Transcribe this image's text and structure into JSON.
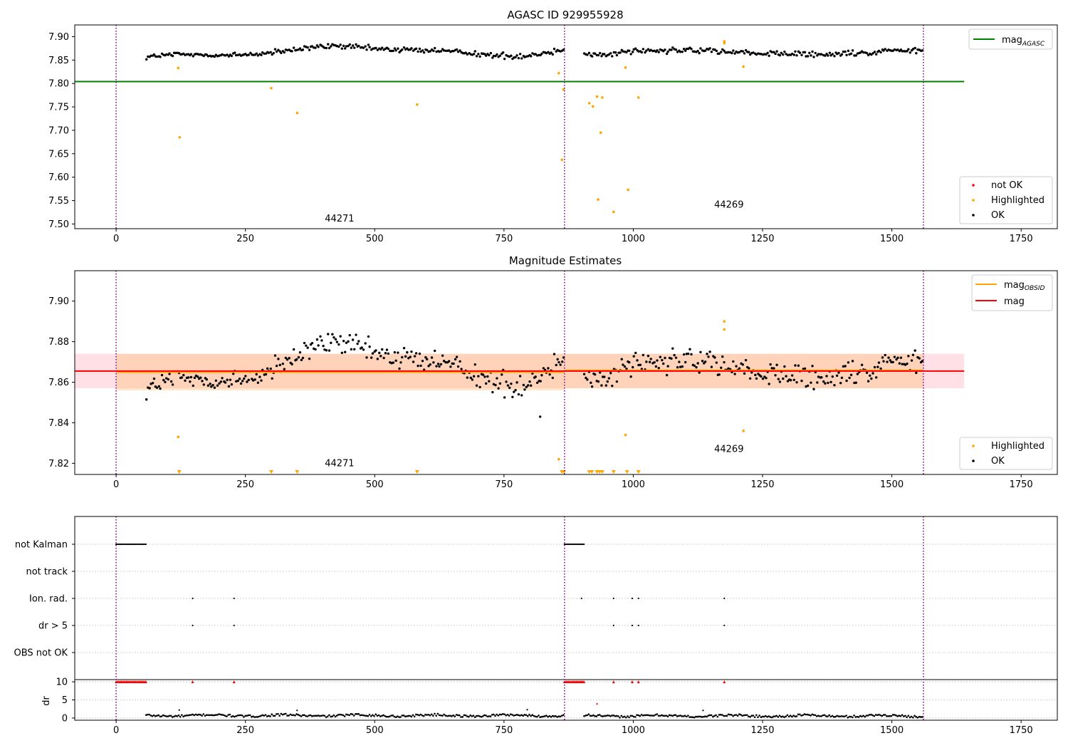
{
  "chart_data": [
    {
      "type": "scatter",
      "title": "AGASC ID 929955928",
      "xlim": [
        -80,
        1820
      ],
      "ylim": [
        7.49,
        7.925
      ],
      "xticks": [
        0,
        250,
        500,
        750,
        1000,
        1250,
        1500,
        1750
      ],
      "xtick_labels": [
        "0",
        "250",
        "500",
        "750",
        "1000",
        "1250",
        "1500",
        "1750"
      ],
      "yticks": [
        7.5,
        7.55,
        7.6,
        7.65,
        7.7,
        7.75,
        7.8,
        7.85,
        7.9
      ],
      "ytick_labels": [
        "7.50",
        "7.55",
        "7.60",
        "7.65",
        "7.70",
        "7.75",
        "7.80",
        "7.85",
        "7.90"
      ],
      "mag_agasc": 7.804,
      "obs_boundaries": [
        0,
        867,
        1561
      ],
      "obs_labels": [
        {
          "text": "44271",
          "x": 432,
          "y": 7.505
        },
        {
          "text": "44269",
          "x": 1185,
          "y": 7.535
        }
      ],
      "legend_top": [
        {
          "label": "mag",
          "subscript": "AGASC",
          "color": "#008000"
        }
      ],
      "legend_bottom": [
        {
          "label": "not OK",
          "color": "#ff0000"
        },
        {
          "label": "Highlighted",
          "color": "#ffa500"
        },
        {
          "label": "OK",
          "color": "#000000"
        }
      ],
      "series": [
        {
          "name": "OK",
          "color": "#000000",
          "segments": [
            {
              "x_start": 58,
              "x_end": 867,
              "step": 3,
              "base": 7.866,
              "wave": [
                [
                  0,
                  -0.009
                ],
                [
                  60,
                  -0.004
                ],
                [
                  170,
                  -0.006
                ],
                [
                  250,
                  0.0
                ],
                [
                  330,
                  0.012
                ],
                [
                  380,
                  0.014
                ],
                [
                  440,
                  0.008
                ],
                [
                  540,
                  0.005
                ],
                [
                  620,
                  0.001
                ],
                [
                  660,
                  -0.006
                ],
                [
                  720,
                  -0.008
                ],
                [
                  780,
                  0.0
                ],
                [
                  830,
                  0.012
                ],
                [
                  880,
                  0.006
                ]
              ],
              "noise": 0.0045
            },
            {
              "x_start": 905,
              "x_end": 1561,
              "step": 3,
              "base": 7.866,
              "wave": [
                [
                  0,
                  -0.004
                ],
                [
                  60,
                  -0.002
                ],
                [
                  100,
                  0.004
                ],
                [
                  200,
                  0.006
                ],
                [
                  280,
                  0.002
                ],
                [
                  380,
                  -0.003
                ],
                [
                  480,
                  -0.005
                ],
                [
                  560,
                  0.0
                ],
                [
                  620,
                  0.006
                ],
                [
                  680,
                  0.004
                ]
              ],
              "noise": 0.0045
            }
          ]
        },
        {
          "name": "Highlighted",
          "color": "#ffa500",
          "points": [
            [
              120,
              7.833
            ],
            [
              123,
              7.685
            ],
            [
              300,
              7.79
            ],
            [
              350,
              7.737
            ],
            [
              582,
              7.755
            ],
            [
              856,
              7.822
            ],
            [
              862,
              7.637
            ],
            [
              865,
              7.787
            ],
            [
              915,
              7.758
            ],
            [
              922,
              7.751
            ],
            [
              930,
              7.772
            ],
            [
              932,
              7.552
            ],
            [
              937,
              7.695
            ],
            [
              940,
              7.77
            ],
            [
              962,
              7.526
            ],
            [
              985,
              7.834
            ],
            [
              990,
              7.573
            ],
            [
              1010,
              7.77
            ],
            [
              1176,
              7.89
            ],
            [
              1176,
              7.886
            ],
            [
              1213,
              7.836
            ]
          ]
        }
      ]
    },
    {
      "type": "scatter",
      "title": "Magnitude Estimates",
      "xlim": [
        -80,
        1820
      ],
      "ylim": [
        7.8145,
        7.915
      ],
      "xticks": [
        0,
        250,
        500,
        750,
        1000,
        1250,
        1500,
        1750
      ],
      "xtick_labels": [
        "0",
        "250",
        "500",
        "750",
        "1000",
        "1250",
        "1500",
        "1750"
      ],
      "yticks": [
        7.82,
        7.84,
        7.86,
        7.88,
        7.9
      ],
      "ytick_labels": [
        "7.82",
        "7.84",
        "7.86",
        "7.88",
        "7.90"
      ],
      "mag": 7.8655,
      "mag_band": [
        7.857,
        7.874
      ],
      "mag_obsid": [
        {
          "x_start": 0,
          "x_end": 867,
          "value": 7.865,
          "band": [
            7.856,
            7.874
          ]
        },
        {
          "x_start": 867,
          "x_end": 1561,
          "value": 7.8658,
          "band": [
            7.857,
            7.874
          ]
        }
      ],
      "obs_boundaries": [
        0,
        867,
        1561
      ],
      "obs_labels": [
        {
          "text": "44271",
          "x": 432,
          "y": 7.8185
        },
        {
          "text": "44269",
          "x": 1185,
          "y": 7.8255
        }
      ],
      "legend_top": [
        {
          "label": "mag",
          "subscript": "OBSID",
          "color": "#ffa500"
        },
        {
          "label": "mag",
          "subscript": "",
          "color": "#ff0000"
        }
      ],
      "legend_bottom": [
        {
          "label": "Highlighted",
          "color": "#ffa500"
        },
        {
          "label": "OK",
          "color": "#000000"
        }
      ],
      "clipped_low_markers_x": [
        122,
        300,
        350,
        582,
        862,
        866,
        915,
        920,
        930,
        935,
        940,
        962,
        988,
        1010
      ],
      "series": [
        {
          "name": "OK",
          "color": "#000000",
          "segments": [
            {
              "x_start": 58,
              "x_end": 867,
              "step": 3,
              "base": 7.866,
              "wave": [
                [
                  0,
                  -0.009
                ],
                [
                  60,
                  -0.004
                ],
                [
                  170,
                  -0.006
                ],
                [
                  250,
                  0.0
                ],
                [
                  330,
                  0.012
                ],
                [
                  380,
                  0.014
                ],
                [
                  440,
                  0.008
                ],
                [
                  540,
                  0.005
                ],
                [
                  620,
                  0.001
                ],
                [
                  660,
                  -0.006
                ],
                [
                  720,
                  -0.008
                ],
                [
                  780,
                  0.0
                ],
                [
                  830,
                  0.012
                ],
                [
                  880,
                  0.006
                ]
              ],
              "noise": 0.0045
            },
            {
              "x_start": 905,
              "x_end": 1561,
              "step": 3,
              "base": 7.866,
              "wave": [
                [
                  0,
                  -0.004
                ],
                [
                  60,
                  -0.002
                ],
                [
                  100,
                  0.004
                ],
                [
                  200,
                  0.006
                ],
                [
                  280,
                  0.002
                ],
                [
                  380,
                  -0.003
                ],
                [
                  480,
                  -0.005
                ],
                [
                  560,
                  0.0
                ],
                [
                  620,
                  0.006
                ],
                [
                  680,
                  0.004
                ]
              ],
              "noise": 0.0045
            }
          ],
          "extra_points": [
            [
              820,
              7.843
            ]
          ]
        },
        {
          "name": "Highlighted",
          "color": "#ffa500",
          "points": [
            [
              120,
              7.833
            ],
            [
              856,
              7.822
            ],
            [
              985,
              7.834
            ],
            [
              1176,
              7.89
            ],
            [
              1176,
              7.886
            ],
            [
              1213,
              7.836
            ]
          ]
        }
      ]
    },
    {
      "type": "scatter",
      "title": "",
      "xlim": [
        -80,
        1820
      ],
      "xticks": [
        0,
        250,
        500,
        750,
        1000,
        1250,
        1500,
        1750
      ],
      "xtick_labels": [
        "0",
        "250",
        "500",
        "750",
        "1000",
        "1250",
        "1500",
        "1750"
      ],
      "obs_boundaries": [
        0,
        867,
        1561
      ],
      "flag_rows": [
        "not Kalman",
        "not track",
        "Ion. rad.",
        "dr > 5",
        "OBS not OK"
      ],
      "flags": {
        "not Kalman": {
          "ranges": [
            [
              0,
              58
            ],
            [
              867,
              905
            ]
          ]
        },
        "not track": {
          "points": []
        },
        "Ion. rad.": {
          "points": [
            148,
            228,
            900,
            962,
            998,
            1010,
            1176
          ]
        },
        "dr > 5": {
          "points": [
            148,
            228,
            962,
            998,
            1010,
            1176
          ]
        },
        "OBS not OK": {
          "points": []
        }
      },
      "dr": {
        "ylabel": "dr",
        "yticks": [
          0,
          5,
          10
        ],
        "ytick_labels": [
          "0",
          "5",
          "10"
        ],
        "ylim": [
          -0.6,
          10.6
        ],
        "clipped_high_ranges": [
          [
            0,
            58
          ],
          [
            867,
            905
          ]
        ],
        "clipped_high_points": [
          148,
          228,
          962,
          998,
          1010,
          1176
        ],
        "segments": [
          {
            "x_start": 58,
            "x_end": 867,
            "step": 3,
            "base": 0.7,
            "amp": 0.5
          },
          {
            "x_start": 905,
            "x_end": 1561,
            "step": 3,
            "base": 0.6,
            "amp": 0.5
          }
        ],
        "outliers": [
          [
            122,
            2.2
          ],
          [
            350,
            2.1
          ],
          [
            795,
            2.3
          ],
          [
            1135,
            2.1
          ],
          [
            930,
            3.9
          ]
        ]
      }
    }
  ]
}
